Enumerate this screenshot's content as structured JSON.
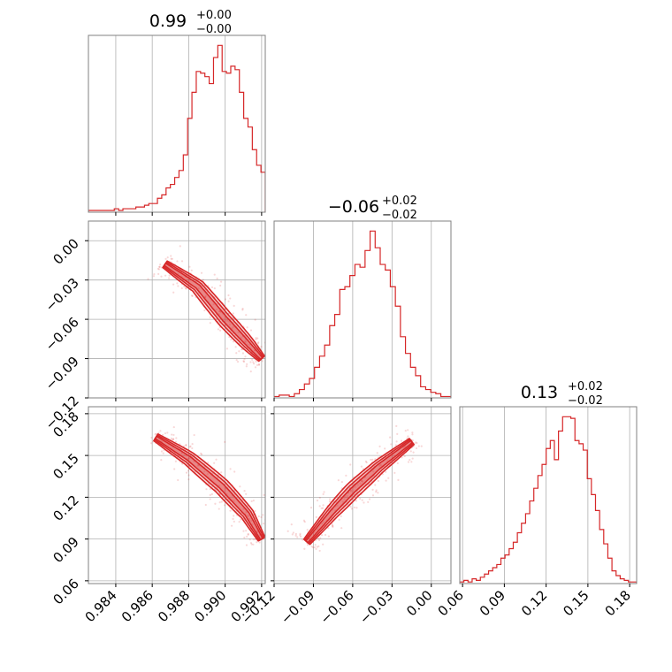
{
  "chart_data": {
    "type": "corner",
    "color": "#d62728",
    "grid": true,
    "parameters": [
      {
        "title": {
          "median": "0.99",
          "plus": "+0.00",
          "minus": "−0.00"
        },
        "range": [
          0.9825,
          0.9922
        ],
        "ticks": [
          0.984,
          0.986,
          0.988,
          0.99,
          0.992
        ],
        "tick_labels": [
          "0.984",
          "0.986",
          "0.988",
          "0.990",
          "0.992"
        ]
      },
      {
        "title": {
          "median": "−0.06",
          "plus": "+0.02",
          "minus": "−0.02"
        },
        "range": [
          -0.12,
          0.015
        ],
        "ticks": [
          -0.12,
          -0.09,
          -0.06,
          -0.03,
          0.0
        ],
        "tick_labels": [
          "−0.12",
          "−0.09",
          "−0.06",
          "−0.03",
          "0.00"
        ]
      },
      {
        "title": {
          "median": "0.13",
          "plus": "+0.02",
          "minus": "−0.02"
        },
        "range": [
          0.058,
          0.185
        ],
        "ticks": [
          0.06,
          0.09,
          0.12,
          0.15,
          0.18
        ],
        "tick_labels": [
          "0.06",
          "0.09",
          "0.12",
          "0.15",
          "0.18"
        ]
      }
    ],
    "histograms": [
      {
        "param": 0,
        "bins": [
          0.9825,
          0.9922
        ],
        "counts": [
          1,
          1,
          1,
          1,
          1,
          1,
          2,
          1,
          2,
          2,
          2,
          3,
          3,
          4,
          5,
          5,
          8,
          10,
          14,
          16,
          20,
          24,
          33,
          54,
          69,
          81,
          80,
          78,
          74,
          89,
          96,
          81,
          80,
          84,
          82,
          69,
          54,
          49,
          36,
          27,
          23
        ]
      },
      {
        "param": 1,
        "bins": [
          -0.12,
          0.015
        ],
        "counts": [
          1,
          2,
          2,
          1,
          3,
          6,
          10,
          14,
          22,
          30,
          38,
          52,
          60,
          78,
          80,
          88,
          96,
          94,
          106,
          120,
          108,
          96,
          92,
          80,
          66,
          44,
          32,
          22,
          16,
          8,
          6,
          4,
          3,
          1,
          1
        ]
      },
      {
        "param": 2,
        "bins": [
          0.058,
          0.185
        ],
        "counts": [
          1,
          2,
          1,
          3,
          2,
          4,
          6,
          8,
          10,
          12,
          16,
          18,
          22,
          26,
          32,
          38,
          44,
          52,
          60,
          68,
          75,
          85,
          90,
          78,
          96,
          105,
          105,
          104,
          90,
          88,
          84,
          66,
          56,
          46,
          34,
          25,
          16,
          8,
          5,
          3,
          2,
          1,
          1
        ]
      }
    ],
    "pairs": [
      {
        "x_param": 0,
        "y_param": 1,
        "ridge_x": [
          0.9867,
          0.9885,
          0.99,
          0.9912,
          0.992
        ],
        "ridge_y": [
          -0.018,
          -0.035,
          -0.06,
          -0.078,
          -0.09
        ]
      },
      {
        "x_param": 0,
        "y_param": 2,
        "ridge_x": [
          0.9862,
          0.988,
          0.9898,
          0.9912,
          0.992
        ],
        "ridge_y": [
          0.163,
          0.148,
          0.128,
          0.108,
          0.09
        ]
      },
      {
        "x_param": 1,
        "y_param": 2,
        "ridge_x": [
          -0.095,
          -0.075,
          -0.06,
          -0.04,
          -0.015
        ],
        "ridge_y": [
          0.088,
          0.11,
          0.125,
          0.142,
          0.16
        ]
      }
    ]
  }
}
